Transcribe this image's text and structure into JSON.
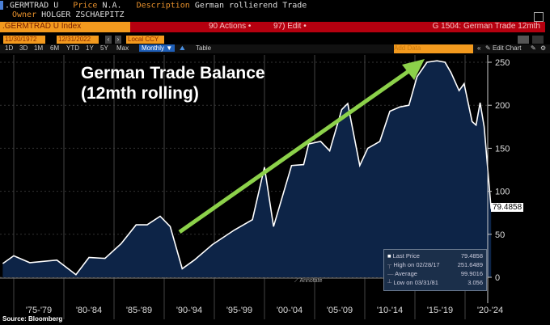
{
  "header": {
    "ticker": ".GERMTRAD U",
    "price_label": "Price",
    "price_value": "N.A.",
    "description_label": "Description",
    "description_value": "German rollierend Trade",
    "owner_label": "Owner",
    "owner_value": "HOLGER ZSCHAEPITZ"
  },
  "command_bar": {
    "security": ".GERMTRAD U Index",
    "actions": "90 Actions •",
    "edit": "97) Edit •",
    "page_title": "G 1504: German Trade 12mth"
  },
  "range": {
    "start": "11/30/1972",
    "end": "12/31/2022",
    "currency": "Local CCY"
  },
  "periods": [
    "1D",
    "3D",
    "1M",
    "6M",
    "YTD",
    "1Y",
    "5Y",
    "Max"
  ],
  "frequency": "Monthly ▼",
  "table_label": "Table",
  "add_data_placeholder": "Add Data",
  "edit_chart": "Edit Chart",
  "annotate": "Annotate",
  "source": "Source: Bloomberg",
  "colors": {
    "fill": "#0d2447",
    "line": "#ffffff",
    "arrow": "#8cd14a",
    "command_bar": "#b5000f",
    "input": "#f39a1e"
  },
  "chart_data": {
    "type": "area",
    "title": "German Trade Balance (12mth rolling)",
    "ylim": [
      0,
      260
    ],
    "yticks": [
      0,
      50,
      100,
      150,
      200,
      250
    ],
    "xlim": [
      1972.9,
      2022.9
    ],
    "xtick_labels": [
      "'75-'79",
      "'80-'84",
      "'85-'89",
      "'90-'94",
      "'95-'99",
      "'00-'04",
      "'05-'09",
      "'10-'14",
      "'15-'19",
      "'20-'24"
    ],
    "grid": true,
    "x": [
      1973.9,
      1975,
      1976.6,
      1979.3,
      1981.2,
      1982.5,
      1984.1,
      1985.7,
      1987.2,
      1988.3,
      1989.6,
      1990.6,
      1991.8,
      1993,
      1994.8,
      1997,
      1998.8,
      2000,
      2000.9,
      2002.7,
      2003.9,
      2004.4,
      2005.6,
      2006.5,
      2007.7,
      2008.3,
      2009.5,
      2010.3,
      2011.5,
      2012.5,
      2013.5,
      2014.4,
      2015.2,
      2016.2,
      2017.2,
      2018,
      2018.6,
      2019.4,
      2019.9,
      2020.7,
      2021.1,
      2021.5,
      2021.9,
      2022.6
    ],
    "y": [
      16,
      25,
      17,
      20,
      3.056,
      23,
      22,
      39,
      61,
      61,
      71,
      59,
      10,
      20,
      38,
      55,
      67,
      128,
      59,
      130,
      131,
      155,
      158,
      147,
      195,
      202,
      130,
      150,
      158,
      193,
      198,
      200,
      233,
      250,
      251.6489,
      250,
      238,
      217,
      225,
      181,
      177,
      203,
      175,
      79.4858
    ],
    "last_price_tag": "79.4858",
    "legend": {
      "placement": "bottom-right",
      "entries": [
        {
          "label": "Last Price",
          "value": "79.4858"
        },
        {
          "label": "High on 02/28/17",
          "value": "251.6489"
        },
        {
          "label": "Average",
          "value": "99.9016"
        },
        {
          "label": "Low on 03/31/81",
          "value": "3.056"
        }
      ]
    }
  }
}
